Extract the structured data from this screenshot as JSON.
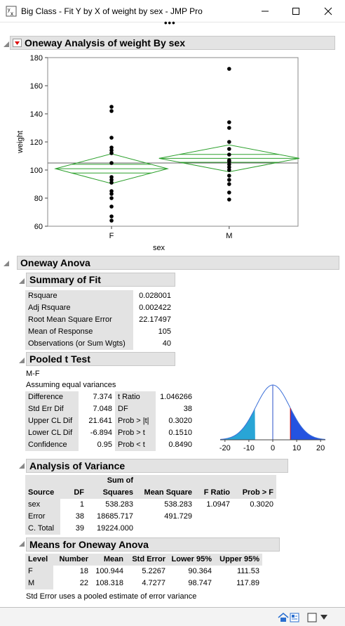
{
  "window": {
    "title": "Big Class - Fit Y by X of weight by sex - JMP Pro",
    "more": "•••"
  },
  "oneway": {
    "title": "Oneway Analysis of weight By sex",
    "plot": {
      "ylabel": "weight",
      "xlabel": "sex",
      "yticks": [
        "60",
        "80",
        "100",
        "120",
        "140",
        "160",
        "180"
      ],
      "categories": [
        "F",
        "M"
      ],
      "grand_mean": 105
    }
  },
  "anova": {
    "title": "Oneway Anova",
    "summary": {
      "title": "Summary of Fit",
      "rows": [
        {
          "label": "Rsquare",
          "value": "0.028001"
        },
        {
          "label": "Adj Rsquare",
          "value": "0.002422"
        },
        {
          "label": "Root Mean Square Error",
          "value": "22.17497"
        },
        {
          "label": "Mean of Response",
          "value": "105"
        },
        {
          "label": "Observations (or Sum Wgts)",
          "value": "40"
        }
      ]
    },
    "pooled": {
      "title": "Pooled t Test",
      "contrast": "M-F",
      "assumption": "Assuming equal variances",
      "rows": [
        {
          "l1": "Difference",
          "v1": "7.374",
          "l2": "t Ratio",
          "v2": "1.046266"
        },
        {
          "l1": "Std Err Dif",
          "v1": "7.048",
          "l2": "DF",
          "v2": "38"
        },
        {
          "l1": "Upper CL Dif",
          "v1": "21.641",
          "l2": "Prob > |t|",
          "v2": "0.3020"
        },
        {
          "l1": "Lower CL Dif",
          "v1": "-6.894",
          "l2": "Prob > t",
          "v2": "0.1510"
        },
        {
          "l1": "Confidence",
          "v1": "0.95",
          "l2": "Prob < t",
          "v2": "0.8490"
        }
      ],
      "curve_ticks": [
        "-20",
        "-10",
        "0",
        "10",
        "20"
      ]
    },
    "aov": {
      "title": "Analysis of Variance",
      "header_top": "Sum of",
      "headers": [
        "Source",
        "DF",
        "Squares",
        "Mean Square",
        "F Ratio",
        "Prob > F"
      ],
      "rows": [
        [
          "sex",
          "1",
          "538.283",
          "538.283",
          "1.0947",
          "0.3020"
        ],
        [
          "Error",
          "38",
          "18685.717",
          "491.729",
          "",
          ""
        ],
        [
          "C. Total",
          "39",
          "19224.000",
          "",
          "",
          ""
        ]
      ]
    },
    "means": {
      "title": "Means for Oneway Anova",
      "headers": [
        "Level",
        "Number",
        "Mean",
        "Std Error",
        "Lower 95%",
        "Upper 95%"
      ],
      "rows": [
        [
          "F",
          "18",
          "100.944",
          "5.2267",
          "90.364",
          "111.53"
        ],
        [
          "M",
          "22",
          "108.318",
          "4.7277",
          "98.747",
          "117.89"
        ]
      ],
      "note": "Std Error uses a pooled estimate of error variance"
    }
  },
  "chart_data": {
    "type": "scatter",
    "xlabel": "sex",
    "ylabel": "weight",
    "categories": [
      "F",
      "M"
    ],
    "ylim": [
      60,
      180
    ],
    "series": [
      {
        "category": "F",
        "values": [
          145,
          142,
          123,
          116,
          114,
          112,
          105,
          95,
          93,
          91,
          85,
          83,
          80,
          74,
          67,
          64
        ]
      },
      {
        "category": "M",
        "values": [
          172,
          134,
          130,
          120,
          115,
          111,
          107,
          106,
          104,
          102,
          100,
          96,
          93,
          90,
          84,
          79
        ]
      }
    ],
    "diamonds": [
      {
        "category": "F",
        "mean": 100.944,
        "lower95": 90.364,
        "upper95": 111.53
      },
      {
        "category": "M",
        "mean": 108.318,
        "lower95": 98.747,
        "upper95": 117.89
      }
    ],
    "grand_mean": 105
  },
  "colors": {
    "diamond": "#2ca02c",
    "points": "#000000",
    "tail_left": "#29a5d6",
    "tail_right": "#2453e0",
    "curve": "#3b6fd8"
  }
}
